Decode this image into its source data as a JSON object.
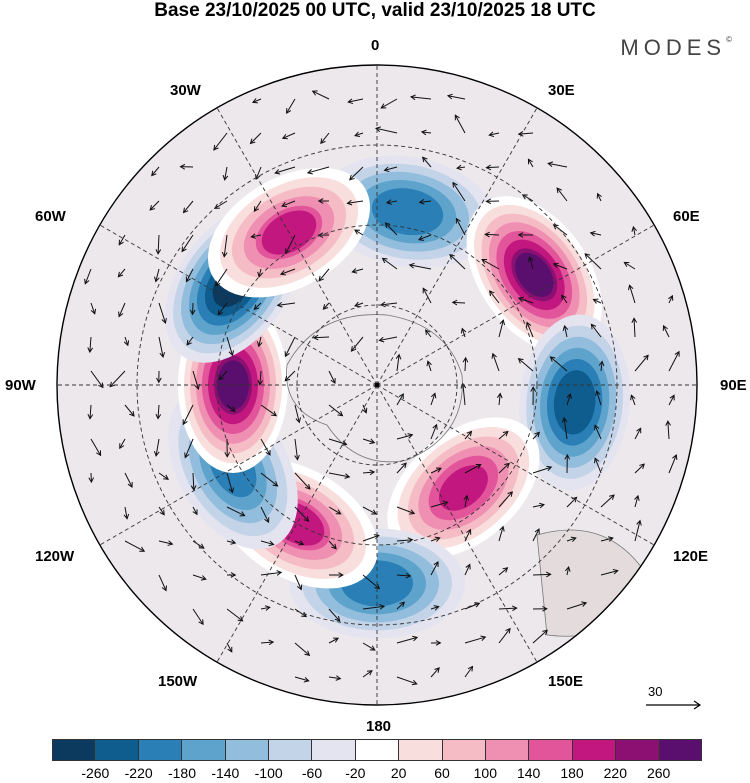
{
  "title": "Base 23/10/2025 00 UTC, valid 23/10/2025 18 UTC",
  "brand": "MODES",
  "brand_mark": "©",
  "map": {
    "projection": "polar stereographic",
    "longitude_labels": [
      "0",
      "30E",
      "60E",
      "90E",
      "120E",
      "150E",
      "180",
      "150W",
      "120W",
      "90W",
      "60W",
      "30W"
    ],
    "features": [
      {
        "name": "anomaly-low-south-atlantic",
        "sign": "negative",
        "lon": 10,
        "lat_dist": 0.55,
        "strength": -200
      },
      {
        "name": "anomaly-high-southwest-indian",
        "sign": "positive",
        "lon": 55,
        "lat_dist": 0.6,
        "strength": 280
      },
      {
        "name": "anomaly-low-indian",
        "sign": "negative",
        "lon": 95,
        "lat_dist": 0.62,
        "strength": -240
      },
      {
        "name": "anomaly-high-south-australia",
        "sign": "positive",
        "lon": 140,
        "lat_dist": 0.42,
        "strength": 220
      },
      {
        "name": "anomaly-low-tasman",
        "sign": "negative",
        "lon": 180,
        "lat_dist": 0.62,
        "strength": -200
      },
      {
        "name": "anomaly-high-south-pacific",
        "sign": "positive",
        "lon": 210,
        "lat_dist": 0.5,
        "strength": 200
      },
      {
        "name": "anomaly-low-southeast-pacific",
        "sign": "negative",
        "lon": 240,
        "lat_dist": 0.52,
        "strength": -180
      },
      {
        "name": "anomaly-high-bellingshausen",
        "sign": "positive",
        "lon": 270,
        "lat_dist": 0.45,
        "strength": 280
      },
      {
        "name": "anomaly-low-south-america",
        "sign": "negative",
        "lon": 305,
        "lat_dist": 0.55,
        "strength": -260
      },
      {
        "name": "anomaly-high-south-atlantic-west",
        "sign": "positive",
        "lon": 330,
        "lat_dist": 0.55,
        "strength": 200
      }
    ]
  },
  "colorbar": {
    "colors": [
      "#0b3a5e",
      "#0f5d8f",
      "#2a80b6",
      "#5ea3cc",
      "#93bddc",
      "#c3d3e8",
      "#e4e4f0",
      "#ffffff",
      "#f8dedc",
      "#f5bcc5",
      "#ef8fb2",
      "#e2559b",
      "#c2177f",
      "#8c0f72",
      "#5a0f6e"
    ],
    "ticks": [
      "-260",
      "-220",
      "-180",
      "-140",
      "-100",
      "-60",
      "-20",
      "20",
      "60",
      "100",
      "140",
      "180",
      "220",
      "260"
    ]
  },
  "reference_vector": "30"
}
